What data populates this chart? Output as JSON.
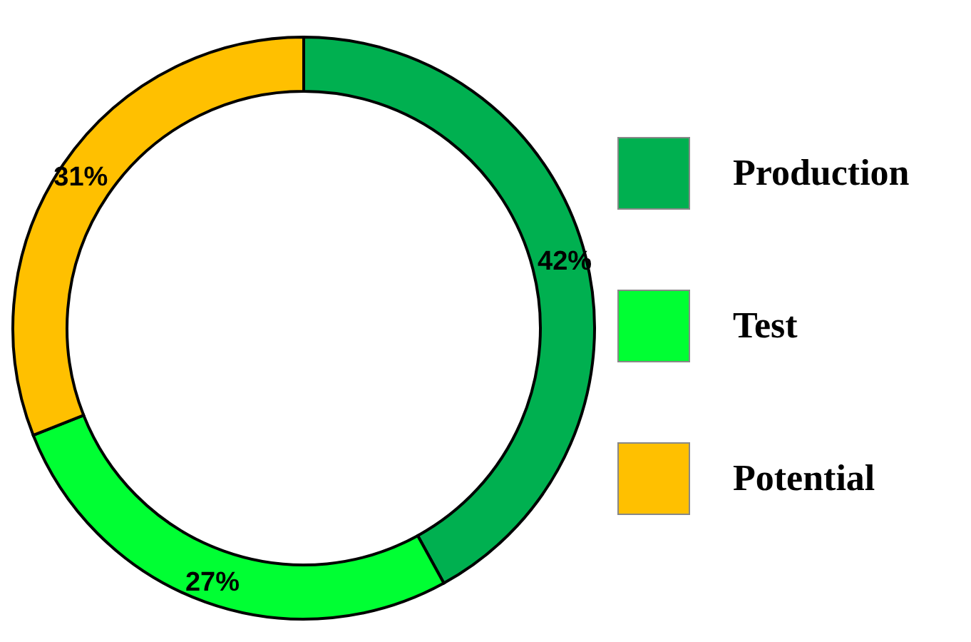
{
  "chart_data": {
    "type": "donut",
    "categories": [
      "Production",
      "Test",
      "Potential"
    ],
    "values": [
      42,
      27,
      31
    ],
    "colors": [
      "#00b050",
      "#00ff33",
      "#ffc000"
    ],
    "value_labels": [
      "42%",
      "27%",
      "31%"
    ],
    "legend": "right"
  }
}
